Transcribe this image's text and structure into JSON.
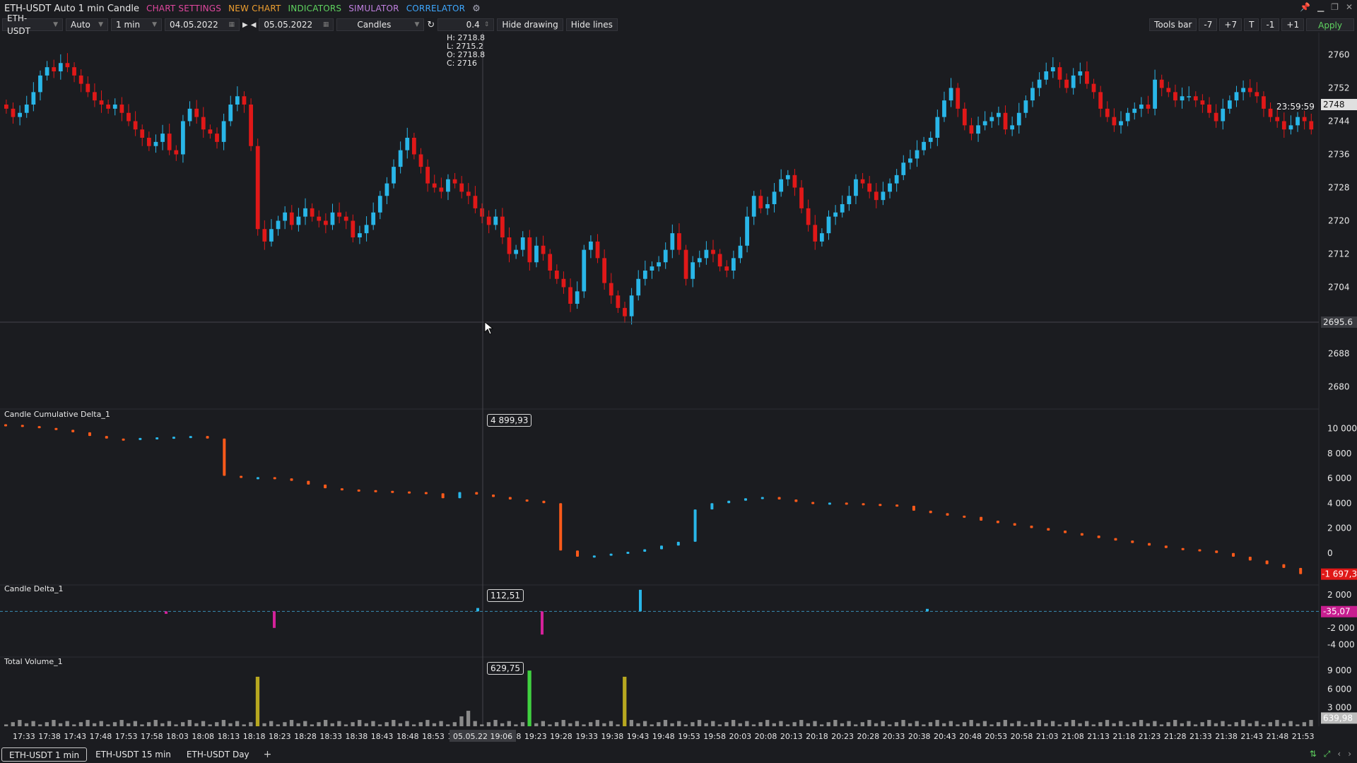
{
  "window": {
    "title": "ETH-USDT Auto 1 min Candle",
    "menu": [
      {
        "label": "CHART SETTINGS",
        "color": "#e0479e"
      },
      {
        "label": "NEW CHART",
        "color": "#f0a030"
      },
      {
        "label": "INDICATORS",
        "color": "#5fd35f"
      },
      {
        "label": "SIMULATOR",
        "color": "#c080e0"
      },
      {
        "label": "CORRELATOR",
        "color": "#3ea8ff"
      }
    ]
  },
  "toolbar": {
    "symbol": "ETH-USDT",
    "mode": "Auto",
    "timeframe": "1 min",
    "date_from": "04.05.2022",
    "date_to": "05.05.2022",
    "chart_type": "Candles",
    "step_value": "0.4",
    "hide_drawing": "Hide drawing",
    "hide_lines": "Hide lines",
    "tools_bar": "Tools bar",
    "minus7": "-7",
    "plus7": "+7",
    "t": "T",
    "minus1": "-1",
    "plus1": "+1",
    "apply": "Apply"
  },
  "ohlc": {
    "h": "H: 2718.8",
    "l": "L: 2715.2",
    "o": "O: 2718.8",
    "c": "C: 2716"
  },
  "panels": {
    "cumdelta": {
      "label": "Candle Cumulative Delta_1",
      "cursor_value": "4 899,93",
      "last_value": "-1 697,3"
    },
    "delta": {
      "label": "Candle Delta_1",
      "cursor_value": "112,51",
      "last_value": "-35,07"
    },
    "volume": {
      "label": "Total Volume_1",
      "cursor_value": "629,75",
      "last_value": "639,98"
    }
  },
  "price_axis": {
    "ticks": [
      "2760",
      "2752",
      "2744",
      "2736",
      "2728",
      "2720",
      "2712",
      "2704",
      "2688",
      "2680"
    ],
    "current_price": "2748",
    "timer": "23:59:59",
    "crosshair_price": "2695.6"
  },
  "cumdelta_axis": [
    "10 000",
    "8 000",
    "6 000",
    "4 000",
    "2 000",
    "0"
  ],
  "delta_axis": [
    "2 000",
    "-2 000",
    "-4 000"
  ],
  "volume_axis": [
    "9 000",
    "6 000",
    "3 000"
  ],
  "time_axis": [
    "17:33",
    "17:38",
    "17:43",
    "17:48",
    "17:53",
    "17:58",
    "18:03",
    "18:08",
    "18:13",
    "18:18",
    "18:23",
    "18:28",
    "18:33",
    "18:38",
    "18:43",
    "18:48",
    "18:53",
    "18:5",
    "3",
    "19:18",
    "19:23",
    "19:28",
    "19:33",
    "19:38",
    "19:43",
    "19:48",
    "19:53",
    "19:58",
    "20:03",
    "20:08",
    "20:13",
    "20:18",
    "20:23",
    "20:28",
    "20:33",
    "20:38",
    "20:43",
    "20:48",
    "20:53",
    "20:58",
    "21:03",
    "21:08",
    "21:13",
    "21:18",
    "21:23",
    "21:28",
    "21:33",
    "21:38",
    "21:43",
    "21:48",
    "21:53"
  ],
  "crosshair_time": "05.05.22 19:06",
  "tabs": [
    "ETH-USDT 1 min",
    "ETH-USDT 15 min",
    "ETH-USDT Day"
  ],
  "tab_add": "+",
  "colors": {
    "up": "#29b6e8",
    "down": "#e01818",
    "cum_down": "#ff5a1a",
    "delta_down": "#d4229a",
    "volume": "#8a8a8a",
    "volume_hl1": "#b8a820",
    "volume_hl2": "#40d040",
    "price_tag_bg": "#e0e0e0",
    "neg_tag_bg": "#e01818",
    "delta_tag_bg": "#c81e90"
  },
  "chart_data": {
    "type": "candlestick",
    "x_start": "17:30",
    "x_end": "21:56",
    "interval": "1 min",
    "y_range": [
      2676,
      2764
    ],
    "close": [
      2747,
      2745,
      2746,
      2748,
      2751,
      2755,
      2757,
      2756,
      2758,
      2757,
      2755,
      2753,
      2751,
      2749,
      2748,
      2747,
      2748,
      2746,
      2744,
      2742,
      2740,
      2738,
      2739,
      2741,
      2737,
      2736,
      2744,
      2747,
      2745,
      2742,
      2741,
      2739,
      2744,
      2748,
      2750,
      2748,
      2738,
      2718,
      2715,
      2718,
      2720,
      2722,
      2719,
      2721,
      2723,
      2721,
      2720,
      2719,
      2722,
      2721,
      2720,
      2716,
      2717,
      2719,
      2722,
      2726,
      2729,
      2733,
      2737,
      2740,
      2736,
      2733,
      2729,
      2728,
      2727,
      2730,
      2729,
      2727,
      2726,
      2723,
      2721,
      2719,
      2721,
      2716,
      2712,
      2713,
      2716,
      2710,
      2714,
      2712,
      2708,
      2706,
      2704,
      2700,
      2703,
      2713,
      2715,
      2711,
      2705,
      2702,
      2699,
      2697,
      2702,
      2706,
      2708,
      2709,
      2710,
      2713,
      2717,
      2713,
      2706,
      2710,
      2711,
      2713,
      2712,
      2709,
      2708,
      2711,
      2714,
      2721,
      2726,
      2723,
      2724,
      2727,
      2730,
      2731,
      2728,
      2723,
      2719,
      2715,
      2717,
      2721,
      2722,
      2724,
      2726,
      2730,
      2729,
      2727,
      2725,
      2727,
      2729,
      2731,
      2734,
      2735,
      2737,
      2739,
      2740,
      2745,
      2749,
      2752,
      2747,
      2743,
      2741,
      2743,
      2744,
      2745,
      2746,
      2742,
      2743,
      2746,
      2749,
      2752,
      2754,
      2756,
      2757,
      2754,
      2752,
      2755,
      2756,
      2753,
      2751,
      2747,
      2745,
      2743,
      2744,
      2746,
      2747,
      2748,
      2747,
      2754,
      2752,
      2751,
      2749,
      2750,
      2750,
      2749,
      2748,
      2746,
      2744,
      2747,
      2749,
      2751,
      2752,
      2751,
      2750,
      2747,
      2745,
      2744,
      2742,
      2743,
      2745,
      2744,
      2742
    ],
    "cum_delta": [
      10300,
      10200,
      10050,
      9900,
      9700,
      9400,
      9200,
      9150,
      9250,
      9300,
      9350,
      9400,
      9200,
      6200,
      6050,
      6100,
      6000,
      5800,
      5500,
      5200,
      5100,
      5050,
      5000,
      4950,
      4900,
      4800,
      4400,
      4900,
      4700,
      4500,
      4300,
      4200,
      4000,
      200,
      -300,
      -200,
      -50,
      100,
      300,
      600,
      900,
      3500,
      4000,
      4200,
      4400,
      4500,
      4300,
      4100,
      4000,
      4050,
      4000,
      3950,
      3900,
      3800,
      3400,
      3200,
      3000,
      2900,
      2600,
      2400,
      2200,
      2000,
      1800,
      1600,
      1400,
      1200,
      1000,
      800,
      600,
      400,
      300,
      200,
      0,
      -300,
      -600,
      -900,
      -1200,
      -1697
    ]
  }
}
